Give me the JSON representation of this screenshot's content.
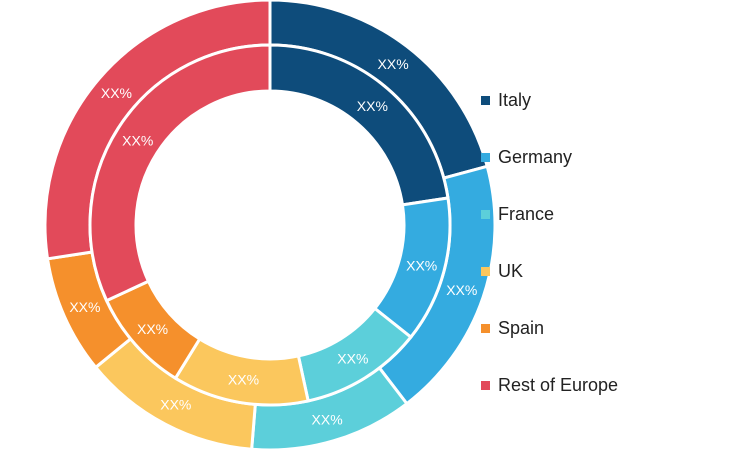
{
  "chart_data": {
    "type": "pie",
    "subtype": "double-donut",
    "series": [
      {
        "ring": "outer",
        "categories": [
          "Italy",
          "Germany",
          "France",
          "UK",
          "Spain",
          "Rest of Europe"
        ],
        "values": [
          20.8,
          18.8,
          11.7,
          12.8,
          8.5,
          27.4
        ],
        "labels": [
          "XX%",
          "XX%",
          "XX%",
          "XX%",
          "XX%",
          "XX%"
        ]
      },
      {
        "ring": "inner",
        "categories": [
          "Italy",
          "Germany",
          "France",
          "UK",
          "Spain",
          "Rest of Europe"
        ],
        "values": [
          22.6,
          13.1,
          10.9,
          12.2,
          9.3,
          31.9
        ],
        "labels": [
          "XX%",
          "XX%",
          "XX%",
          "XX%",
          "XX%",
          "XX%"
        ]
      }
    ],
    "colors": [
      "#0e4c7b",
      "#34abe0",
      "#5ccfda",
      "#fbc75d",
      "#f5902c",
      "#e24a5a"
    ],
    "legend_position": "right"
  },
  "legend": [
    {
      "label": "Italy",
      "color": "#0e4c7b"
    },
    {
      "label": "Germany",
      "color": "#34abe0"
    },
    {
      "label": "France",
      "color": "#5ccfda"
    },
    {
      "label": "UK",
      "color": "#fbc75d"
    },
    {
      "label": "Spain",
      "color": "#f5902c"
    },
    {
      "label": "Rest of Europe",
      "color": "#e24a5a"
    }
  ]
}
